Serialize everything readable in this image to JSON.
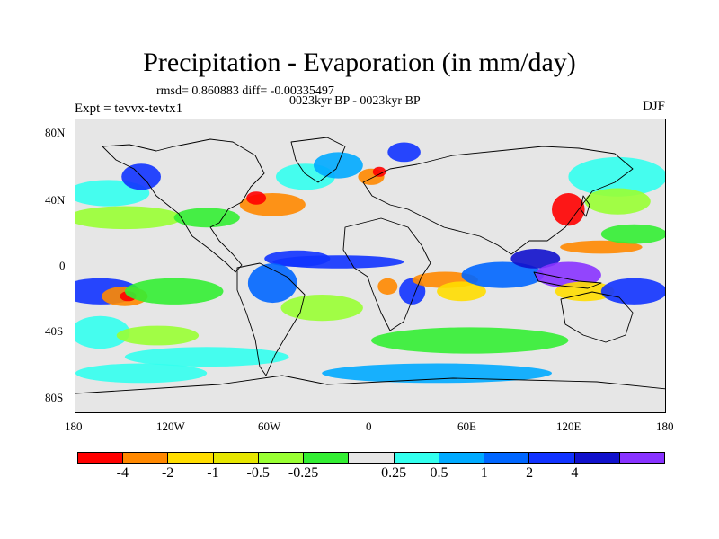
{
  "title": "Precipitation - Evaporation (in mm/day)",
  "stats_line": "rmsd= 0.860883 diff= -0.00335497",
  "period": "0023kyr BP - 0023kyr BP",
  "experiment": "Expt = tevvx-tevtx1",
  "season": "DJF",
  "colors": {
    "background": "#e6e6e6",
    "coastline": "#000000"
  },
  "map": {
    "lat_ticks": [
      "80N",
      "40N",
      "0",
      "40S",
      "80S"
    ],
    "lon_ticks": [
      "180",
      "120W",
      "60W",
      "0",
      "60E",
      "120E",
      "180"
    ],
    "lon_range": [
      -180,
      180
    ],
    "lat_range": [
      -90,
      90
    ]
  },
  "colorbar": {
    "colors": [
      "#ff0000",
      "#ff8800",
      "#ffdd00",
      "#e6e600",
      "#99ff33",
      "#33ee33",
      "#e6e6e6",
      "#33ffee",
      "#00aaff",
      "#0066ff",
      "#1133ff",
      "#1111cc",
      "#8833ff"
    ],
    "labels": [
      "-4",
      "-2",
      "-1",
      "-0.5",
      "-0.25",
      "0.25",
      "0.5",
      "1",
      "2",
      "4"
    ]
  },
  "field": [
    {
      "lon": -165,
      "lat": -15,
      "rx": 24,
      "ry": 8,
      "c": "#1133ff"
    },
    {
      "lon": -150,
      "lat": -18,
      "rx": 14,
      "ry": 6,
      "c": "#ff8800"
    },
    {
      "lon": -148,
      "lat": -18,
      "rx": 5,
      "ry": 3,
      "c": "#ff0000"
    },
    {
      "lon": -120,
      "lat": -15,
      "rx": 30,
      "ry": 8,
      "c": "#33ee33"
    },
    {
      "lon": -165,
      "lat": -40,
      "rx": 18,
      "ry": 10,
      "c": "#33ffee"
    },
    {
      "lon": -130,
      "lat": -42,
      "rx": 25,
      "ry": 6,
      "c": "#99ff33"
    },
    {
      "lon": -160,
      "lat": 45,
      "rx": 25,
      "ry": 8,
      "c": "#33ffee"
    },
    {
      "lon": -140,
      "lat": 55,
      "rx": 12,
      "ry": 8,
      "c": "#1133ff"
    },
    {
      "lon": -150,
      "lat": 30,
      "rx": 35,
      "ry": 7,
      "c": "#99ff33"
    },
    {
      "lon": -100,
      "lat": 30,
      "rx": 20,
      "ry": 6,
      "c": "#33ee33"
    },
    {
      "lon": -60,
      "lat": 38,
      "rx": 20,
      "ry": 7,
      "c": "#ff8800"
    },
    {
      "lon": -70,
      "lat": 42,
      "rx": 6,
      "ry": 4,
      "c": "#ff0000"
    },
    {
      "lon": -40,
      "lat": 55,
      "rx": 18,
      "ry": 8,
      "c": "#33ffee"
    },
    {
      "lon": -20,
      "lat": 62,
      "rx": 15,
      "ry": 8,
      "c": "#00aaff"
    },
    {
      "lon": 0,
      "lat": 55,
      "rx": 8,
      "ry": 5,
      "c": "#ff8800"
    },
    {
      "lon": 5,
      "lat": 58,
      "rx": 4,
      "ry": 3,
      "c": "#ff0000"
    },
    {
      "lon": 20,
      "lat": 70,
      "rx": 10,
      "ry": 6,
      "c": "#1133ff"
    },
    {
      "lon": -45,
      "lat": 5,
      "rx": 20,
      "ry": 5,
      "c": "#1133ff"
    },
    {
      "lon": -20,
      "lat": 3,
      "rx": 40,
      "ry": 4,
      "c": "#1133ff"
    },
    {
      "lon": -60,
      "lat": -10,
      "rx": 15,
      "ry": 12,
      "c": "#0066ff"
    },
    {
      "lon": -30,
      "lat": -25,
      "rx": 25,
      "ry": 8,
      "c": "#99ff33"
    },
    {
      "lon": 10,
      "lat": -12,
      "rx": 6,
      "ry": 5,
      "c": "#ff8800"
    },
    {
      "lon": 25,
      "lat": -15,
      "rx": 8,
      "ry": 8,
      "c": "#1133ff"
    },
    {
      "lon": 45,
      "lat": -8,
      "rx": 20,
      "ry": 5,
      "c": "#ff8800"
    },
    {
      "lon": 55,
      "lat": -15,
      "rx": 15,
      "ry": 6,
      "c": "#ffdd00"
    },
    {
      "lon": 80,
      "lat": -5,
      "rx": 25,
      "ry": 8,
      "c": "#0066ff"
    },
    {
      "lon": 100,
      "lat": 5,
      "rx": 15,
      "ry": 6,
      "c": "#1111cc"
    },
    {
      "lon": 120,
      "lat": -5,
      "rx": 20,
      "ry": 8,
      "c": "#8833ff"
    },
    {
      "lon": 140,
      "lat": 12,
      "rx": 25,
      "ry": 4,
      "c": "#ff8800"
    },
    {
      "lon": 120,
      "lat": 35,
      "rx": 10,
      "ry": 10,
      "c": "#ff0000"
    },
    {
      "lon": 130,
      "lat": -15,
      "rx": 18,
      "ry": 6,
      "c": "#ffdd00"
    },
    {
      "lon": 160,
      "lat": -15,
      "rx": 20,
      "ry": 8,
      "c": "#1133ff"
    },
    {
      "lon": 160,
      "lat": 20,
      "rx": 20,
      "ry": 6,
      "c": "#33ee33"
    },
    {
      "lon": 60,
      "lat": -45,
      "rx": 60,
      "ry": 8,
      "c": "#33ee33"
    },
    {
      "lon": -100,
      "lat": -55,
      "rx": 50,
      "ry": 6,
      "c": "#33ffee"
    },
    {
      "lon": 40,
      "lat": -65,
      "rx": 70,
      "ry": 6,
      "c": "#00aaff"
    },
    {
      "lon": -140,
      "lat": -65,
      "rx": 40,
      "ry": 6,
      "c": "#33ffee"
    },
    {
      "lon": 150,
      "lat": 55,
      "rx": 30,
      "ry": 12,
      "c": "#33ffee"
    },
    {
      "lon": 150,
      "lat": 40,
      "rx": 20,
      "ry": 8,
      "c": "#99ff33"
    }
  ]
}
